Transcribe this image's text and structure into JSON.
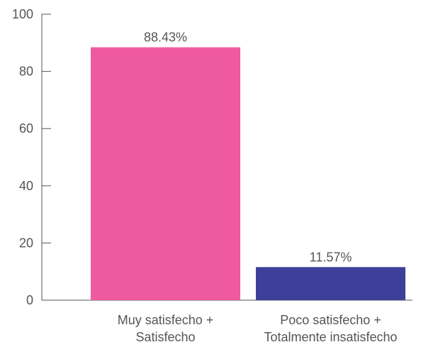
{
  "chart_data": {
    "type": "bar",
    "categories": [
      [
        "Muy satisfecho +",
        "Satisfecho"
      ],
      [
        "Poco satisfecho +",
        "Totalmente insatisfecho"
      ]
    ],
    "values": [
      88.43,
      11.57
    ],
    "value_labels": [
      "88.43%",
      "11.57%"
    ],
    "bar_colors": [
      "#ef5a9e",
      "#3d3f98"
    ],
    "ylim": [
      0,
      100
    ],
    "yticks": [
      0,
      20,
      40,
      60,
      80,
      100
    ],
    "title": "",
    "xlabel": "",
    "ylabel": "",
    "grid": false,
    "legend": "none"
  },
  "style": {
    "axis_color": "#555555",
    "text_color": "#555555"
  }
}
